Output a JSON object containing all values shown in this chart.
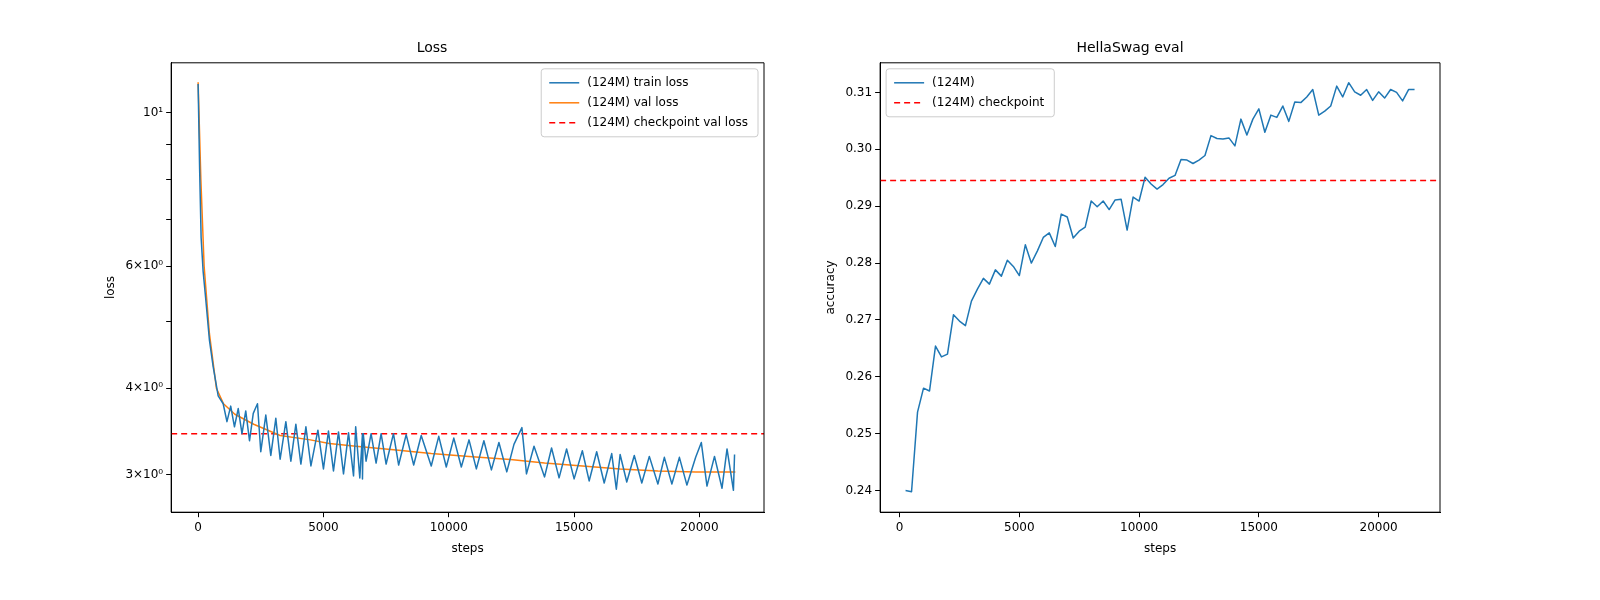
{
  "chart_data": [
    {
      "type": "line",
      "title": "Loss",
      "xlabel": "steps",
      "ylabel": "loss",
      "log": "y",
      "grid": false,
      "legend": "top right",
      "xlim": [
        -1075,
        22575
      ],
      "xticks": [
        0,
        5000,
        10000,
        15000,
        20000
      ],
      "ylim": [
        2.65,
        11.8
      ],
      "yticks": [
        {
          "value": 3,
          "label": "3×10⁰"
        },
        {
          "value": 4,
          "label": "4×10⁰"
        },
        {
          "value": 5,
          "label": null
        },
        {
          "value": 6,
          "label": "6×10⁰"
        },
        {
          "value": 7,
          "label": null
        },
        {
          "value": 8,
          "label": null
        },
        {
          "value": 9,
          "label": null
        },
        {
          "value": 10,
          "label": "10¹"
        }
      ],
      "series": [
        {
          "name": "(124M) train loss",
          "color": "#1f77b4",
          "x": [
            0,
            60,
            120,
            200,
            300,
            450,
            600,
            800,
            1000,
            1150,
            1300,
            1450,
            1600,
            1750,
            1900,
            2050,
            2200,
            2368,
            2500,
            2700,
            2900,
            3100,
            3272,
            3500,
            3700,
            3900,
            4100,
            4300,
            4500,
            4779,
            5000,
            5200,
            5400,
            5600,
            5800,
            6000,
            6200,
            6286,
            6450,
            6557,
            6557,
            6587,
            6700,
            6900,
            7100,
            7300,
            7500,
            7793,
            8000,
            8300,
            8600,
            8900,
            9300,
            9600,
            9900,
            10200,
            10500,
            10807,
            11100,
            11400,
            11700,
            12000,
            12314,
            12600,
            12917,
            13100,
            13400,
            13821,
            14100,
            14400,
            14700,
            15000,
            15328,
            15600,
            15900,
            16200,
            16500,
            16684,
            16835,
            17100,
            17400,
            17700,
            18000,
            18342,
            18600,
            18900,
            19200,
            19500,
            19849,
            20075,
            20300,
            20600,
            20900,
            21100,
            21356,
            21400
          ],
          "values": [
            11.0,
            8.3,
            6.6,
            5.9,
            5.4,
            4.7,
            4.3,
            3.9,
            3.8,
            3.58,
            3.77,
            3.52,
            3.74,
            3.44,
            3.71,
            3.36,
            3.68,
            3.8,
            3.24,
            3.66,
            3.2,
            3.62,
            3.16,
            3.58,
            3.14,
            3.55,
            3.11,
            3.52,
            3.09,
            3.48,
            3.06,
            3.47,
            3.04,
            3.46,
            3.01,
            3.45,
            2.99,
            3.52,
            2.97,
            3.44,
            2.96,
            3.44,
            3.14,
            3.44,
            3.12,
            3.44,
            3.11,
            3.44,
            3.1,
            3.43,
            3.1,
            3.42,
            3.09,
            3.41,
            3.08,
            3.39,
            3.08,
            3.37,
            3.06,
            3.36,
            3.05,
            3.34,
            3.03,
            3.32,
            3.51,
            3.01,
            3.3,
            2.98,
            3.28,
            2.97,
            3.27,
            2.96,
            3.25,
            2.94,
            3.24,
            2.92,
            3.22,
            2.86,
            3.21,
            2.93,
            3.2,
            2.92,
            3.19,
            2.91,
            3.18,
            2.91,
            3.18,
            2.9,
            3.18,
            3.34,
            2.89,
            3.19,
            2.87,
            3.27,
            2.85,
            3.21
          ]
        },
        {
          "name": "(124M) val loss",
          "color": "#ff7f0e",
          "x": [
            0,
            110,
            240,
            450,
            730,
            1013,
            1464,
            2216,
            3272,
            4477,
            5233,
            6288,
            7795,
            9301,
            10808,
            12314,
            13820,
            15331,
            16838,
            18344,
            19851,
            21433
          ],
          "values": [
            11.06,
            8.0,
            6.0,
            4.8,
            4.0,
            3.8,
            3.67,
            3.55,
            3.42,
            3.37,
            3.33,
            3.3,
            3.26,
            3.22,
            3.19,
            3.16,
            3.12,
            3.09,
            3.06,
            3.04,
            3.03,
            3.03
          ]
        }
      ],
      "ref_lines": [
        {
          "axis": "y",
          "value": 3.44,
          "label": "(124M) checkpoint val loss",
          "color": "#ff0000",
          "line_style": "dashed"
        }
      ]
    },
    {
      "type": "line",
      "title": "HellaSwag eval",
      "xlabel": "steps",
      "ylabel": "accuracy",
      "grid": false,
      "legend": "top left",
      "xlim": [
        -812,
        22562
      ],
      "xticks": [
        0,
        5000,
        10000,
        15000,
        20000
      ],
      "ylim": [
        0.2362,
        0.3152
      ],
      "yticks": [
        0.24,
        0.25,
        0.26,
        0.27,
        0.28,
        0.29,
        {
          "value": 0.3,
          "label": "0.30"
        },
        0.31
      ],
      "series": [
        {
          "name": "(124M)",
          "color": "#1f77b4",
          "x": [
            250,
            500,
            750,
            1000,
            1250,
            1500,
            1750,
            2000,
            2250,
            2500,
            2750,
            3000,
            3250,
            3500,
            3750,
            4000,
            4250,
            4500,
            4750,
            5000,
            5250,
            5500,
            5750,
            6000,
            6250,
            6500,
            6750,
            7000,
            7250,
            7500,
            7750,
            8000,
            8250,
            8500,
            8750,
            9000,
            9250,
            9500,
            9750,
            10000,
            10250,
            10500,
            10750,
            11000,
            11250,
            11500,
            11750,
            12000,
            12250,
            12500,
            12750,
            13000,
            13250,
            13500,
            13750,
            14000,
            14250,
            14500,
            14750,
            15000,
            15250,
            15500,
            15750,
            16000,
            16250,
            16500,
            16750,
            17000,
            17250,
            17500,
            17750,
            18000,
            18250,
            18500,
            18750,
            19000,
            19250,
            19500,
            19750,
            20000,
            20250,
            20500,
            20750,
            21000,
            21250,
            21500
          ],
          "values": [
            0.24,
            0.2398,
            0.2538,
            0.258,
            0.2575,
            0.2654,
            0.2635,
            0.264,
            0.2709,
            0.2698,
            0.269,
            0.2733,
            0.2754,
            0.2773,
            0.2763,
            0.2788,
            0.2777,
            0.2805,
            0.2794,
            0.2778,
            0.2832,
            0.28,
            0.2821,
            0.2845,
            0.2853,
            0.2829,
            0.2886,
            0.2881,
            0.2844,
            0.2856,
            0.2863,
            0.2909,
            0.2899,
            0.2909,
            0.2894,
            0.2911,
            0.2912,
            0.2858,
            0.2916,
            0.2909,
            0.2951,
            0.2939,
            0.293,
            0.2938,
            0.2949,
            0.2954,
            0.2982,
            0.2981,
            0.2975,
            0.2981,
            0.2989,
            0.3024,
            0.3019,
            0.3018,
            0.302,
            0.3006,
            0.3053,
            0.3025,
            0.3053,
            0.3071,
            0.303,
            0.306,
            0.3056,
            0.3076,
            0.3049,
            0.3083,
            0.3082,
            0.3092,
            0.3105,
            0.306,
            0.3067,
            0.3076,
            0.3111,
            0.3092,
            0.3117,
            0.3101,
            0.3095,
            0.3105,
            0.3086,
            0.3101,
            0.309,
            0.3105,
            0.31,
            0.3085,
            0.3105,
            0.3105
          ]
        }
      ],
      "ref_lines": [
        {
          "axis": "y",
          "value": 0.2945,
          "label": "(124M) checkpoint",
          "color": "#ff0000",
          "line_style": "dashed"
        }
      ]
    }
  ]
}
